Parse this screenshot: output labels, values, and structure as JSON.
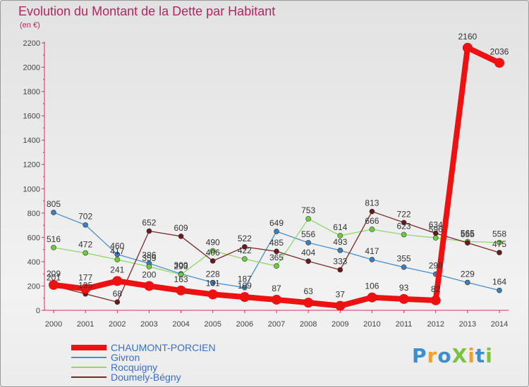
{
  "chart_data": {
    "type": "line",
    "title": "Evolution du Montant de la Dette par Habitant",
    "unit_label": "(en €)",
    "x": [
      "2000",
      "2001",
      "2002",
      "2003",
      "2004",
      "2005",
      "2006",
      "2007",
      "2008",
      "2009",
      "2010",
      "2011",
      "2012",
      "2013",
      "2014"
    ],
    "ylim": [
      0,
      2200
    ],
    "yticks": [
      0,
      200,
      400,
      600,
      800,
      1000,
      1200,
      1400,
      1600,
      1800,
      2000,
      2200
    ],
    "ytick_labels": [
      "0",
      "200",
      "400",
      "600",
      "800",
      "1000",
      "1200",
      "1400",
      "1600",
      "1800",
      "2000",
      "2200"
    ],
    "grid": false,
    "series": [
      {
        "name": "Givron",
        "color": "#4a90c8",
        "point_color": "#3a7fc0",
        "values": [
          805,
          702,
          460,
          386,
          300,
          228,
          187,
          649,
          556,
          493,
          417,
          355,
          298,
          229,
          164
        ]
      },
      {
        "name": "Rocquigny",
        "color": "#8ed86a",
        "point_color": "#6ccf3a",
        "values": [
          516,
          472,
          417,
          359,
          293,
          490,
          422,
          365,
          753,
          614,
          666,
          623,
          596,
          565,
          558
        ]
      },
      {
        "name": "Doumely-Bégny",
        "color": "#7a2a2a",
        "point_color": "#6a1a1a",
        "values": [
          201,
          135,
          68,
          652,
          609,
          406,
          522,
          485,
          404,
          333,
          813,
          722,
          634,
          555,
          475
        ]
      },
      {
        "name": "CHAUMONT-PORCIEN",
        "color": "#ee1111",
        "point_color": "#ee1111",
        "values": [
          209,
          177,
          241,
          200,
          163,
          131,
          109,
          87,
          63,
          37,
          106,
          93,
          82,
          2160,
          2036
        ]
      }
    ],
    "legend_order": [
      "CHAUMONT-PORCIEN",
      "Givron",
      "Rocquigny",
      "Doumely-Bégny"
    ],
    "legend_placement": "bottom-left"
  },
  "logo": {
    "text": "ProXiti",
    "letters": [
      "P",
      "r",
      "o",
      "X",
      "i",
      "t",
      "i"
    ],
    "colors": [
      "#3b8fd1",
      "#f0a030",
      "#3b8fd1",
      "#7cc242",
      "#f0a030",
      "#3b8fd1",
      "#7cc242"
    ]
  }
}
